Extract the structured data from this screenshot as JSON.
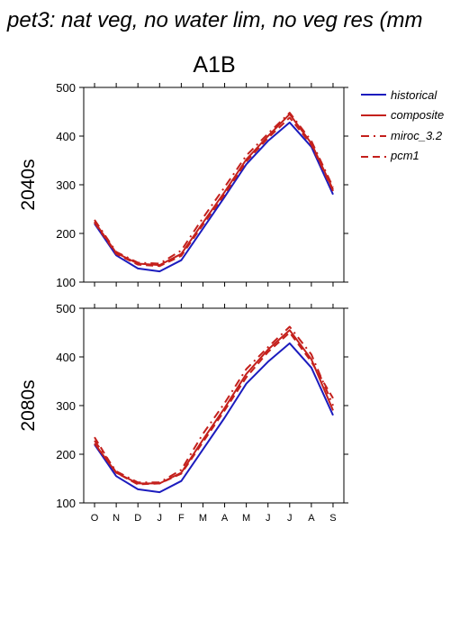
{
  "figure": {
    "title": "pet3: nat veg, no water lim, no veg res (mm",
    "scenario": "A1B"
  },
  "legend": {
    "placement": "top-right",
    "entries": [
      {
        "label": "historical",
        "color": "#1c1cbe",
        "dash": "solid"
      },
      {
        "label": "composite",
        "color": "#c4201c",
        "dash": "solid"
      },
      {
        "label": "miroc_3.2",
        "color": "#c4201c",
        "dash": "dash-dot"
      },
      {
        "label": "pcm1",
        "color": "#c4201c",
        "dash": "dashed"
      }
    ]
  },
  "chart_data": [
    {
      "type": "line",
      "row_label": "2040s",
      "ylim": [
        100,
        500
      ],
      "yticks": [
        "100",
        "200",
        "300",
        "400",
        "500"
      ],
      "categories": [
        "O",
        "N",
        "D",
        "J",
        "F",
        "M",
        "A",
        "M",
        "J",
        "J",
        "A",
        "S"
      ],
      "grid": false,
      "series": [
        {
          "name": "historical",
          "color": "#1c1cbe",
          "dash": "solid",
          "values": [
            220,
            155,
            128,
            122,
            145,
            210,
            275,
            342,
            390,
            428,
            378,
            280
          ]
        },
        {
          "name": "composite",
          "color": "#c4201c",
          "dash": "solid",
          "values": [
            224,
            160,
            138,
            135,
            158,
            222,
            285,
            352,
            400,
            445,
            385,
            290
          ]
        },
        {
          "name": "miroc_3.2",
          "color": "#c4201c",
          "dash": "dash-dot",
          "values": [
            228,
            162,
            140,
            138,
            165,
            232,
            295,
            360,
            405,
            448,
            390,
            295
          ]
        },
        {
          "name": "pcm1",
          "color": "#c4201c",
          "dash": "dashed",
          "values": [
            222,
            158,
            136,
            133,
            154,
            218,
            280,
            348,
            396,
            438,
            382,
            287
          ]
        }
      ]
    },
    {
      "type": "line",
      "row_label": "2080s",
      "ylim": [
        100,
        500
      ],
      "yticks": [
        "100",
        "200",
        "300",
        "400",
        "500"
      ],
      "categories": [
        "O",
        "N",
        "D",
        "J",
        "F",
        "M",
        "A",
        "M",
        "J",
        "J",
        "A",
        "S"
      ],
      "grid": false,
      "series": [
        {
          "name": "historical",
          "color": "#1c1cbe",
          "dash": "solid",
          "values": [
            220,
            155,
            128,
            122,
            145,
            210,
            275,
            345,
            390,
            428,
            378,
            280
          ]
        },
        {
          "name": "composite",
          "color": "#c4201c",
          "dash": "solid",
          "values": [
            222,
            162,
            140,
            140,
            162,
            230,
            295,
            365,
            415,
            455,
            395,
            290
          ]
        },
        {
          "name": "miroc_3.2",
          "color": "#c4201c",
          "dash": "dash-dot",
          "values": [
            228,
            165,
            142,
            142,
            168,
            242,
            305,
            375,
            420,
            462,
            405,
            300
          ]
        },
        {
          "name": "pcm1",
          "color": "#c4201c",
          "dash": "dashed",
          "values": [
            235,
            162,
            138,
            140,
            160,
            225,
            290,
            358,
            410,
            450,
            390,
            315
          ]
        }
      ]
    }
  ]
}
